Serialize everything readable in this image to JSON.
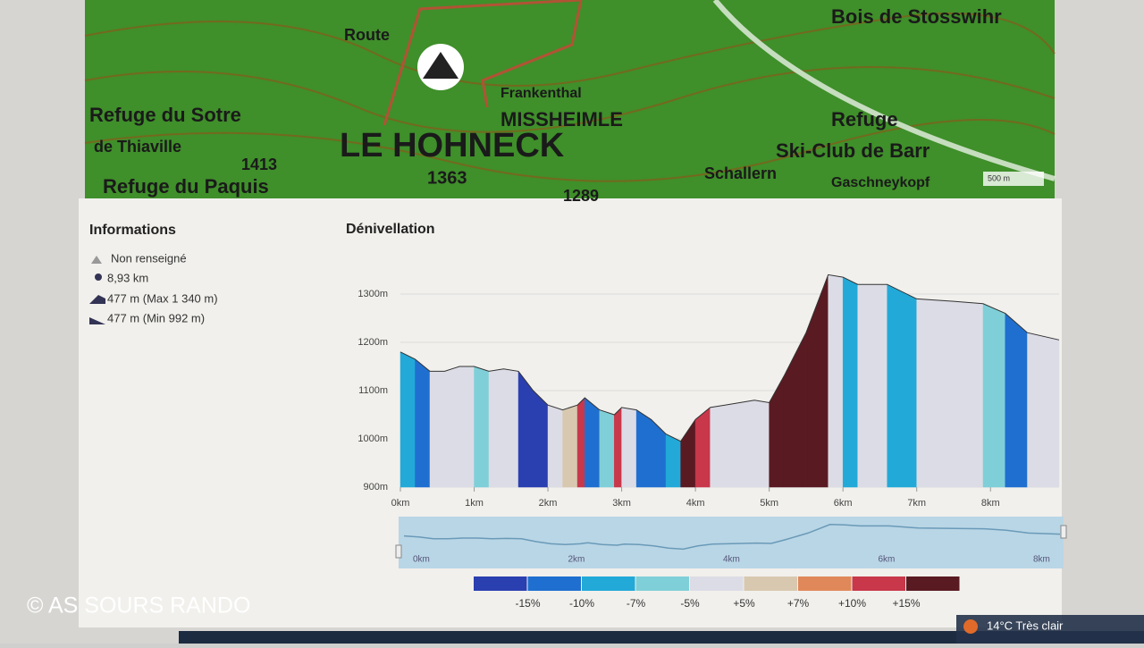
{
  "map": {
    "labels": [
      "LE HOHNECK",
      "1363",
      "Refuge du Sotre",
      "de Thiaville",
      "Refuge du Paquis",
      "Frankenthal",
      "MISSHEIMLE",
      "Refuge",
      "Ski-Club de Barr",
      "Schallern",
      "Gaschneykopf",
      "Route",
      "Bois de Stosswihr",
      "1289",
      "1413"
    ],
    "scale": "500 m"
  },
  "info": {
    "title": "Informations",
    "items": [
      "Non renseigné",
      "8,93 km",
      "477 m (Max 1 340 m)",
      "477 m (Min 992 m)"
    ]
  },
  "chart_data": {
    "type": "area",
    "title": "Dénivellation",
    "x": [
      0,
      0.2,
      0.4,
      0.6,
      0.8,
      1.0,
      1.2,
      1.4,
      1.6,
      1.8,
      2.0,
      2.2,
      2.4,
      2.5,
      2.7,
      2.9,
      3.0,
      3.2,
      3.4,
      3.6,
      3.8,
      4.0,
      4.2,
      4.4,
      4.8,
      5.0,
      5.2,
      5.5,
      5.8,
      6.0,
      6.2,
      6.6,
      7.0,
      7.5,
      7.9,
      8.2,
      8.5,
      8.93
    ],
    "values": [
      1180,
      1165,
      1140,
      1140,
      1150,
      1150,
      1140,
      1145,
      1140,
      1100,
      1070,
      1060,
      1070,
      1085,
      1060,
      1050,
      1065,
      1060,
      1040,
      1010,
      995,
      1040,
      1065,
      1070,
      1080,
      1075,
      1130,
      1220,
      1340,
      1335,
      1320,
      1320,
      1290,
      1285,
      1280,
      1260,
      1220,
      1205
    ],
    "xlim": [
      0,
      8.93
    ],
    "ylim": [
      900,
      1400
    ],
    "xticks": [
      {
        "value": 0,
        "label": "0km"
      },
      {
        "value": 1,
        "label": "1km"
      },
      {
        "value": 2,
        "label": "2km"
      },
      {
        "value": 3,
        "label": "3km"
      },
      {
        "value": 4,
        "label": "4km"
      },
      {
        "value": 5,
        "label": "5km"
      },
      {
        "value": 6,
        "label": "6km"
      },
      {
        "value": 7,
        "label": "7km"
      },
      {
        "value": 8,
        "label": "8km"
      }
    ],
    "yticks": [
      {
        "value": 900,
        "label": "900m"
      },
      {
        "value": 1000,
        "label": "1000m"
      },
      {
        "value": 1100,
        "label": "1100m"
      },
      {
        "value": 1200,
        "label": "1200m"
      },
      {
        "value": 1300,
        "label": "1300m"
      }
    ],
    "grid": true,
    "legend": {
      "colors": [
        "#2a3fb0",
        "#1f6fd0",
        "#22a9d8",
        "#7fcfd8",
        "#dcdce6",
        "#d8c8b0",
        "#e0885a",
        "#c8374a",
        "#5a1a22"
      ],
      "thresholds": [
        {
          "value": -15,
          "label": "-15%"
        },
        {
          "value": -10,
          "label": "-10%"
        },
        {
          "value": -7,
          "label": "-7%"
        },
        {
          "value": -5,
          "label": "-5%"
        },
        {
          "value": 5,
          "label": "+5%"
        },
        {
          "value": 7,
          "label": "+7%"
        },
        {
          "value": 10,
          "label": "+10%"
        },
        {
          "value": 15,
          "label": "+15%"
        }
      ]
    }
  },
  "navigator": {
    "labels": [
      "0km",
      "2km",
      "4km",
      "6km",
      "8km"
    ]
  },
  "watermark": "© AS SOURS RANDO",
  "taskbar": {
    "weather": "14°C Très clair"
  }
}
